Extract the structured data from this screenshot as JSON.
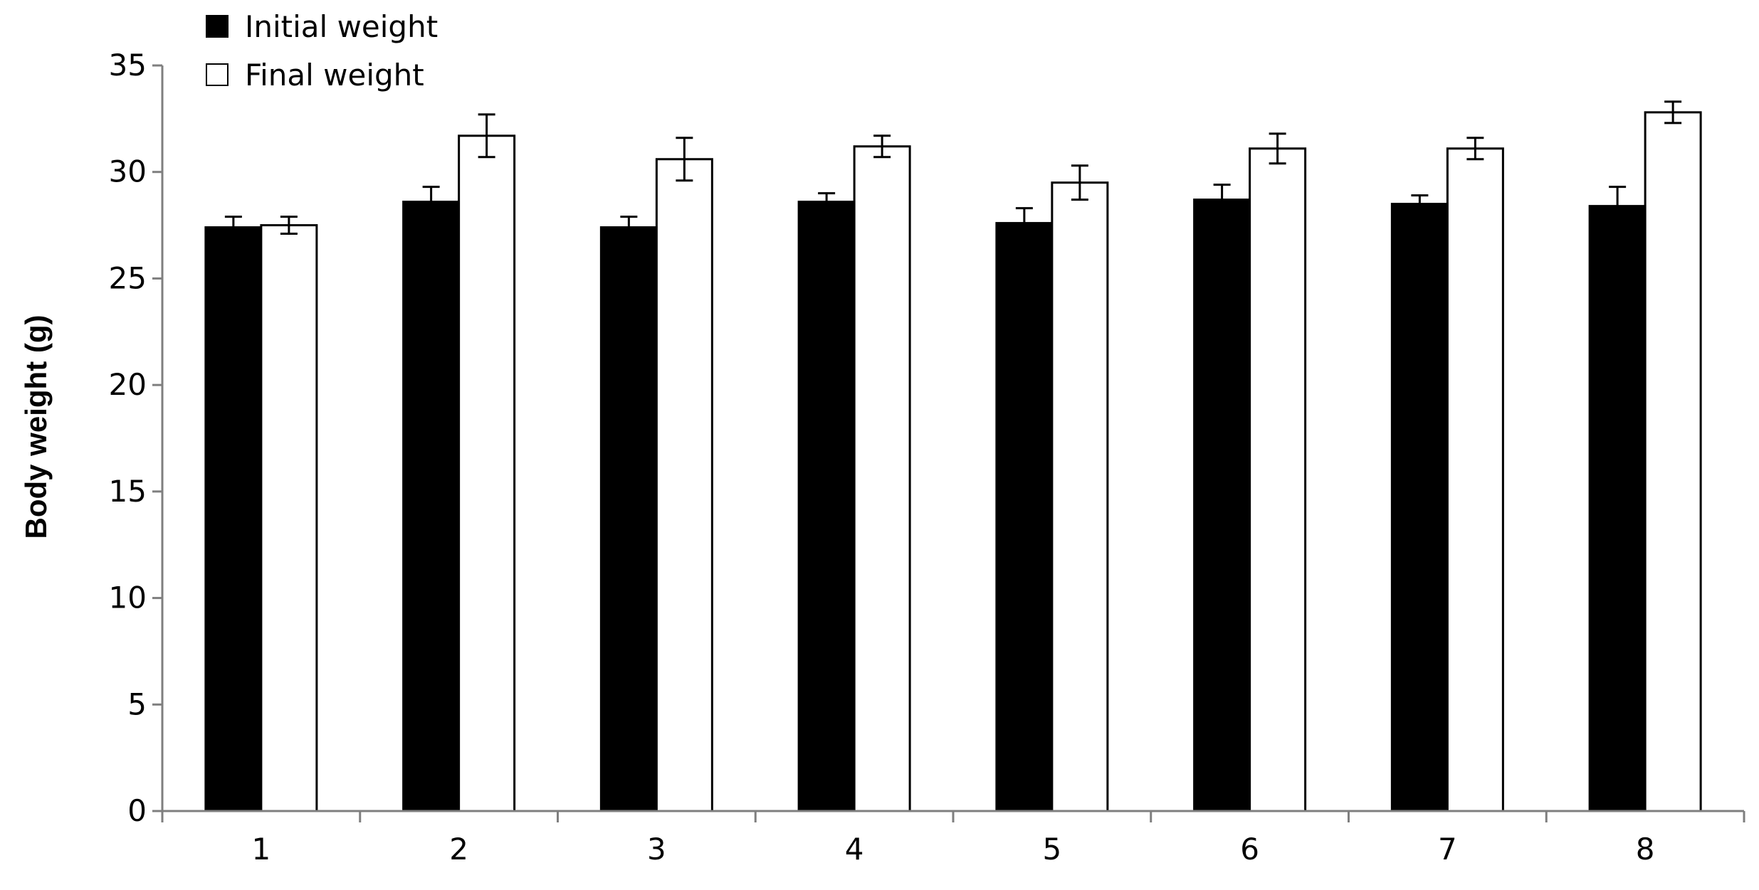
{
  "chart_data": {
    "type": "bar",
    "title": "",
    "xlabel": "",
    "ylabel": "Body weight (g)",
    "categories": [
      "1",
      "2",
      "3",
      "4",
      "5",
      "6",
      "7",
      "8"
    ],
    "ylim": [
      0,
      35
    ],
    "yticks": [
      0,
      5,
      10,
      15,
      20,
      25,
      30,
      35
    ],
    "grid": false,
    "legend_position": "top-left",
    "error_bars": true,
    "series": [
      {
        "name": "Initial weight",
        "fill": "#000000",
        "values": [
          27.4,
          28.6,
          27.4,
          28.6,
          27.6,
          28.7,
          28.5,
          28.4
        ],
        "errors": [
          0.5,
          0.7,
          0.5,
          0.4,
          0.7,
          0.7,
          0.4,
          0.9
        ]
      },
      {
        "name": "Final weight",
        "fill": "#ffffff",
        "values": [
          27.5,
          31.7,
          30.6,
          31.2,
          29.5,
          31.1,
          31.1,
          32.8
        ],
        "errors": [
          0.4,
          1.0,
          1.0,
          0.5,
          0.8,
          0.7,
          0.5,
          0.5
        ]
      }
    ]
  }
}
